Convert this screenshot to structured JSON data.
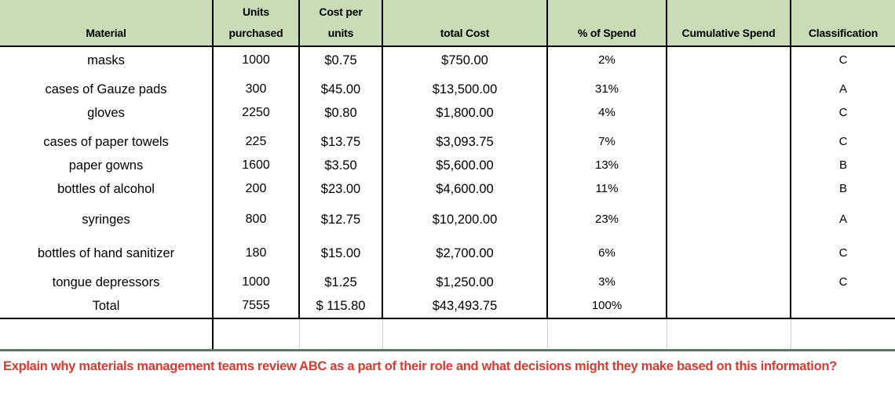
{
  "headers": {
    "material": "Material",
    "units_line1": "Units",
    "units_line2": "purchased",
    "cost_line1": "Cost per",
    "cost_line2": "units",
    "total_cost": "total Cost",
    "pct_spend": "% of Spend",
    "cumulative": "Cumulative Spend",
    "classification": "Classification"
  },
  "rows": [
    {
      "material": "masks",
      "units": "1000",
      "cost": "$0.75",
      "total": "$750.00",
      "pct": "2%",
      "cum": "",
      "cls": "C"
    },
    {
      "material": "cases of Gauze pads",
      "units": "300",
      "cost": "$45.00",
      "total": "$13,500.00",
      "pct": "31%",
      "cum": "",
      "cls": "A"
    },
    {
      "material": "gloves",
      "units": "2250",
      "cost": "$0.80",
      "total": "$1,800.00",
      "pct": "4%",
      "cum": "",
      "cls": "C"
    },
    {
      "material": "cases of paper towels",
      "units": "225",
      "cost": "$13.75",
      "total": "$3,093.75",
      "pct": "7%",
      "cum": "",
      "cls": "C"
    },
    {
      "material": "paper gowns",
      "units": "1600",
      "cost": "$3.50",
      "total": "$5,600.00",
      "pct": "13%",
      "cum": "",
      "cls": "B"
    },
    {
      "material": "bottles of alcohol",
      "units": "200",
      "cost": "$23.00",
      "total": "$4,600.00",
      "pct": "11%",
      "cum": "",
      "cls": "B"
    },
    {
      "material": "syringes",
      "units": "800",
      "cost": "$12.75",
      "total": "$10,200.00",
      "pct": "23%",
      "cum": "",
      "cls": "A"
    },
    {
      "material": "bottles of hand sanitizer",
      "units": "180",
      "cost": "$15.00",
      "total": "$2,700.00",
      "pct": "6%",
      "cum": "",
      "cls": "C"
    },
    {
      "material": "tongue depressors",
      "units": "1000",
      "cost": "$1.25",
      "total": "$1,250.00",
      "pct": "3%",
      "cum": "",
      "cls": "C"
    }
  ],
  "total_row": {
    "material": "Total",
    "units": "7555",
    "cost": "$ 115.80",
    "total": "$43,493.75",
    "pct": "100%",
    "cum": "",
    "cls": ""
  },
  "question": "Explain why materials management teams review ABC as a part of their role and what decisions might they make based on this information?",
  "colors": {
    "header_bg": "#c9dcb6",
    "question_text": "#e0382c",
    "divider": "#4f7d5b"
  }
}
